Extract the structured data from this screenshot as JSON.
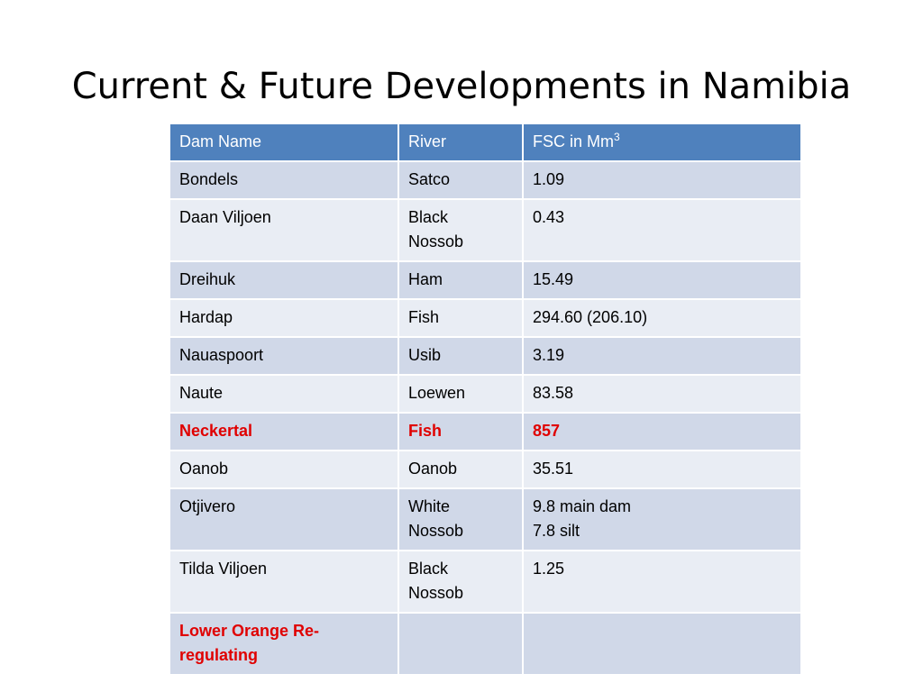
{
  "title": "Current & Future Developments in Namibia",
  "table": {
    "headers": {
      "dam_name": "Dam Name",
      "river": "River",
      "fsc": "FSC  in Mm",
      "fsc_superscript": "3"
    },
    "rows": [
      {
        "dam": "Bondels",
        "river": "Satco",
        "fsc": "1.09"
      },
      {
        "dam": "Daan Viljoen",
        "river": "Black\nNossob",
        "fsc": "0.43"
      },
      {
        "dam": "Dreihuk",
        "river": "Ham",
        "fsc": "15.49"
      },
      {
        "dam": "Hardap",
        "river": "Fish",
        "fsc": "294.60 (206.10)"
      },
      {
        "dam": "Nauaspoort",
        "river": "Usib",
        "fsc": "3.19"
      },
      {
        "dam": "Naute",
        "river": "Loewen",
        "fsc": "83.58"
      },
      {
        "dam": "Neckertal",
        "river": "Fish",
        "fsc": "857"
      },
      {
        "dam": "Oanob",
        "river": "Oanob",
        "fsc": "35.51"
      },
      {
        "dam": "Otjivero",
        "river": "White\nNossob",
        "fsc": "9.8 main dam\n7.8 silt"
      },
      {
        "dam": "Tilda Viljoen",
        "river": "Black\nNossob",
        "fsc": "1.25"
      },
      {
        "dam": "Lower Orange Re-\nregulating",
        "river": "",
        "fsc": ""
      }
    ]
  },
  "colors": {
    "header_bg": "#4f81bd",
    "row_odd_bg": "#d0d8e8",
    "row_even_bg": "#e9edf4",
    "highlight_text": "#e00000"
  }
}
